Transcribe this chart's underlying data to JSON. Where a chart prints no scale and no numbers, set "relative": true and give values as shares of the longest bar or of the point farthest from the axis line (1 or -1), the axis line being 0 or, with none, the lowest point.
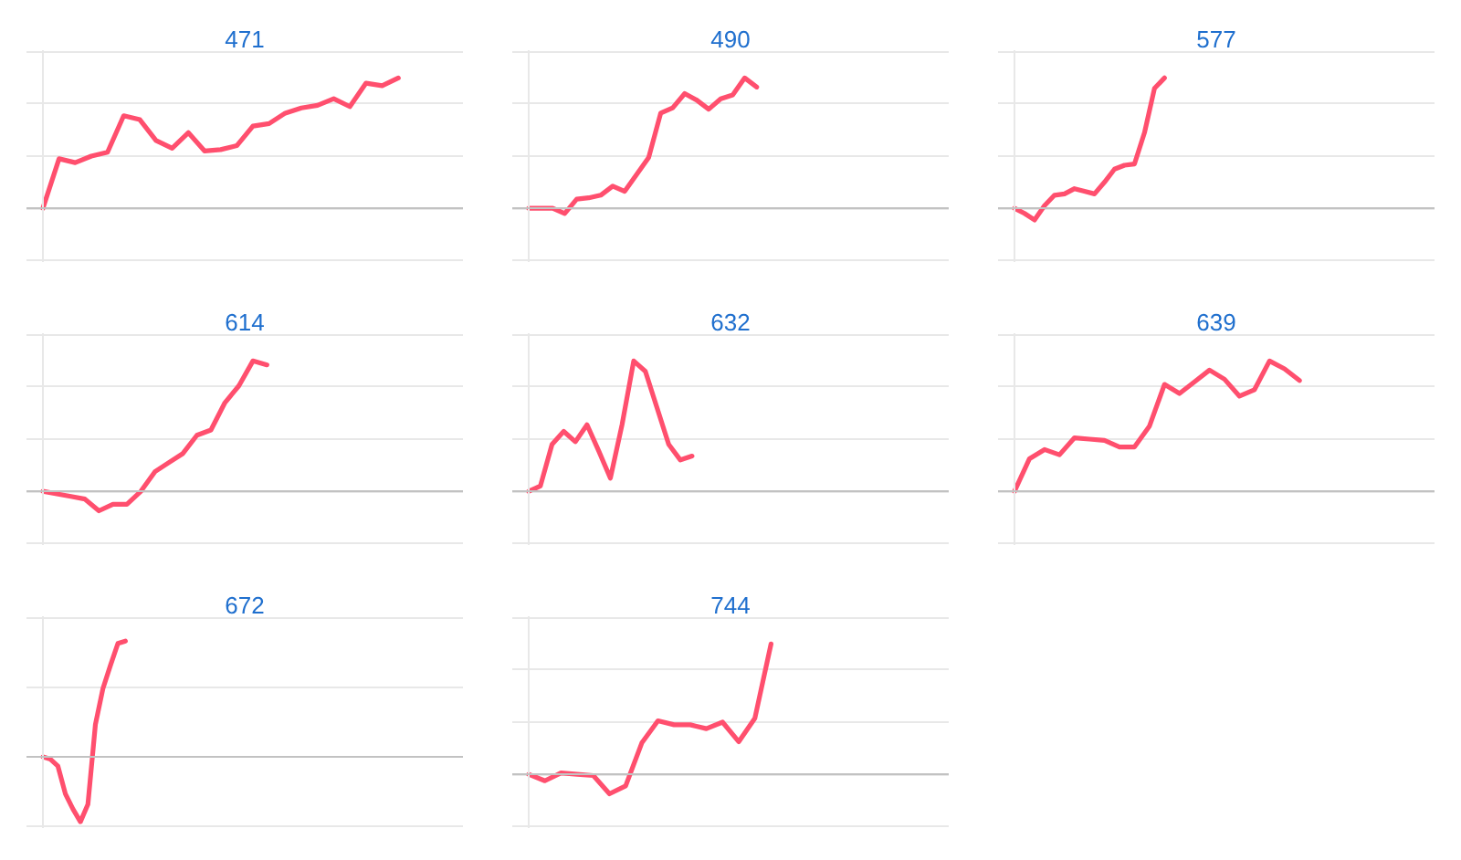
{
  "chart_data": [
    {
      "type": "line",
      "title": "471",
      "relative": true,
      "grid": "y",
      "color": "#ff4f6e",
      "categories": [
        null,
        null,
        null,
        null,
        null,
        null,
        null,
        null,
        null,
        null,
        null,
        null,
        null,
        null,
        null,
        null,
        null,
        null,
        null,
        null,
        null,
        null,
        null,
        null,
        null,
        null,
        null
      ],
      "values": [
        0,
        0.38,
        0.35,
        0.4,
        0.43,
        0.71,
        0.68,
        0.52,
        0.46,
        0.58,
        0.44,
        0.45,
        0.48,
        0.63,
        0.65,
        0.73,
        0.77,
        0.79,
        0.84,
        0.78,
        0.96,
        0.94,
        1,
        null,
        null,
        null,
        null
      ]
    },
    {
      "type": "line",
      "title": "490",
      "relative": true,
      "grid": "y",
      "color": "#ff4f6e",
      "categories": [
        null,
        null,
        null,
        null,
        null,
        null,
        null,
        null,
        null,
        null,
        null,
        null,
        null,
        null,
        null,
        null,
        null,
        null,
        null,
        null,
        null,
        null,
        null,
        null,
        null,
        null,
        null,
        null,
        null,
        null,
        null,
        null,
        null,
        null,
        null,
        null
      ],
      "values": [
        0,
        0,
        0,
        -0.04,
        0.07,
        0.08,
        0.1,
        0.17,
        0.13,
        0.26,
        0.39,
        0.73,
        0.77,
        0.88,
        0.83,
        0.76,
        0.84,
        0.87,
        1,
        0.93,
        null,
        null,
        null,
        null,
        null,
        null,
        null,
        null,
        null,
        null,
        null,
        null,
        null,
        null,
        null,
        null
      ]
    },
    {
      "type": "line",
      "title": "577",
      "relative": true,
      "grid": "y",
      "color": "#ff4f6e",
      "categories": [
        null,
        null,
        null,
        null,
        null,
        null,
        null,
        null,
        null,
        null,
        null,
        null,
        null,
        null,
        null,
        null,
        null,
        null,
        null,
        null,
        null,
        null,
        null,
        null,
        null,
        null,
        null,
        null,
        null,
        null,
        null,
        null,
        null,
        null,
        null,
        null,
        null,
        null,
        null,
        null,
        null,
        null,
        null
      ],
      "values": [
        0,
        -0.04,
        -0.09,
        0.02,
        0.1,
        0.11,
        0.15,
        0.13,
        0.11,
        0.2,
        0.3,
        0.33,
        0.34,
        0.58,
        0.92,
        1,
        null,
        null,
        null,
        null,
        null,
        null,
        null,
        null,
        null,
        null,
        null,
        null,
        null,
        null,
        null,
        null,
        null,
        null,
        null,
        null,
        null,
        null,
        null,
        null,
        null,
        null,
        null
      ]
    },
    {
      "type": "line",
      "title": "614",
      "relative": true,
      "grid": "y",
      "color": "#ff4f6e",
      "categories": [
        null,
        null,
        null,
        null,
        null,
        null,
        null,
        null,
        null,
        null,
        null,
        null,
        null,
        null,
        null,
        null,
        null,
        null,
        null,
        null,
        null,
        null,
        null,
        null,
        null,
        null,
        null,
        null,
        null,
        null,
        null
      ],
      "values": [
        0,
        -0.02,
        -0.04,
        -0.06,
        -0.15,
        -0.1,
        -0.1,
        0,
        0.15,
        0.22,
        0.29,
        0.43,
        0.47,
        0.68,
        0.81,
        1,
        0.97,
        null,
        null,
        null,
        null,
        null,
        null,
        null,
        null,
        null,
        null,
        null,
        null,
        null,
        null
      ]
    },
    {
      "type": "line",
      "title": "632",
      "relative": true,
      "grid": "y",
      "color": "#ff4f6e",
      "categories": [
        null,
        null,
        null,
        null,
        null,
        null,
        null,
        null,
        null,
        null,
        null,
        null,
        null,
        null,
        null,
        null,
        null,
        null,
        null,
        null,
        null,
        null,
        null,
        null,
        null,
        null,
        null,
        null,
        null,
        null,
        null,
        null,
        null,
        null,
        null,
        null,
        null
      ],
      "values": [
        0,
        0.04,
        0.36,
        0.46,
        0.38,
        0.51,
        0.31,
        0.1,
        0.51,
        1,
        0.92,
        0.64,
        0.36,
        0.24,
        0.27,
        null,
        null,
        null,
        null,
        null,
        null,
        null,
        null,
        null,
        null,
        null,
        null,
        null,
        null,
        null,
        null,
        null,
        null,
        null,
        null,
        null,
        null
      ]
    },
    {
      "type": "line",
      "title": "639",
      "relative": true,
      "grid": "y",
      "color": "#ff4f6e",
      "categories": [
        null,
        null,
        null,
        null,
        null,
        null,
        null,
        null,
        null,
        null,
        null,
        null,
        null,
        null,
        null,
        null,
        null,
        null,
        null,
        null,
        null,
        null,
        null,
        null,
        null,
        null,
        null,
        null,
        null
      ],
      "values": [
        0,
        0.25,
        0.32,
        0.28,
        0.41,
        0.4,
        0.39,
        0.34,
        0.34,
        0.5,
        0.82,
        0.75,
        0.84,
        0.93,
        0.86,
        0.73,
        0.78,
        1,
        0.94,
        0.85,
        null,
        null,
        null,
        null,
        null,
        null,
        null,
        null,
        null
      ]
    },
    {
      "type": "line",
      "title": "672",
      "relative": true,
      "grid": "y",
      "color": "#ff4f6e",
      "categories": [
        null,
        null,
        null,
        null,
        null,
        null,
        null,
        null,
        null,
        null,
        null,
        null,
        null,
        null,
        null,
        null,
        null,
        null,
        null,
        null,
        null,
        null,
        null,
        null,
        null,
        null,
        null,
        null,
        null,
        null,
        null,
        null,
        null,
        null,
        null,
        null,
        null,
        null,
        null,
        null,
        null,
        null,
        null,
        null,
        null,
        null,
        null,
        null,
        null,
        null,
        null,
        null,
        null,
        null,
        null,
        null,
        null
      ],
      "values": [
        0,
        -0.02,
        -0.08,
        -0.32,
        -0.45,
        -0.56,
        -0.41,
        0.28,
        0.59,
        0.79,
        0.98,
        1,
        null,
        null,
        null,
        null,
        null,
        null,
        null,
        null,
        null,
        null,
        null,
        null,
        null,
        null,
        null,
        null,
        null,
        null,
        null,
        null,
        null,
        null,
        null,
        null,
        null,
        null,
        null,
        null,
        null,
        null,
        null,
        null,
        null,
        null,
        null,
        null,
        null,
        null,
        null,
        null,
        null,
        null,
        null,
        null,
        null
      ]
    },
    {
      "type": "line",
      "title": "744",
      "relative": true,
      "grid": "y",
      "color": "#ff4f6e",
      "categories": [
        null,
        null,
        null,
        null,
        null,
        null,
        null,
        null,
        null,
        null,
        null,
        null,
        null,
        null,
        null,
        null,
        null,
        null,
        null,
        null,
        null,
        null,
        null,
        null,
        null,
        null,
        null
      ],
      "values": [
        0,
        -0.05,
        0.01,
        0,
        -0.01,
        -0.15,
        -0.09,
        0.24,
        0.41,
        0.38,
        0.38,
        0.35,
        0.4,
        0.25,
        0.43,
        1,
        null,
        null,
        null,
        null,
        null,
        null,
        null,
        null,
        null,
        null,
        null
      ]
    }
  ]
}
